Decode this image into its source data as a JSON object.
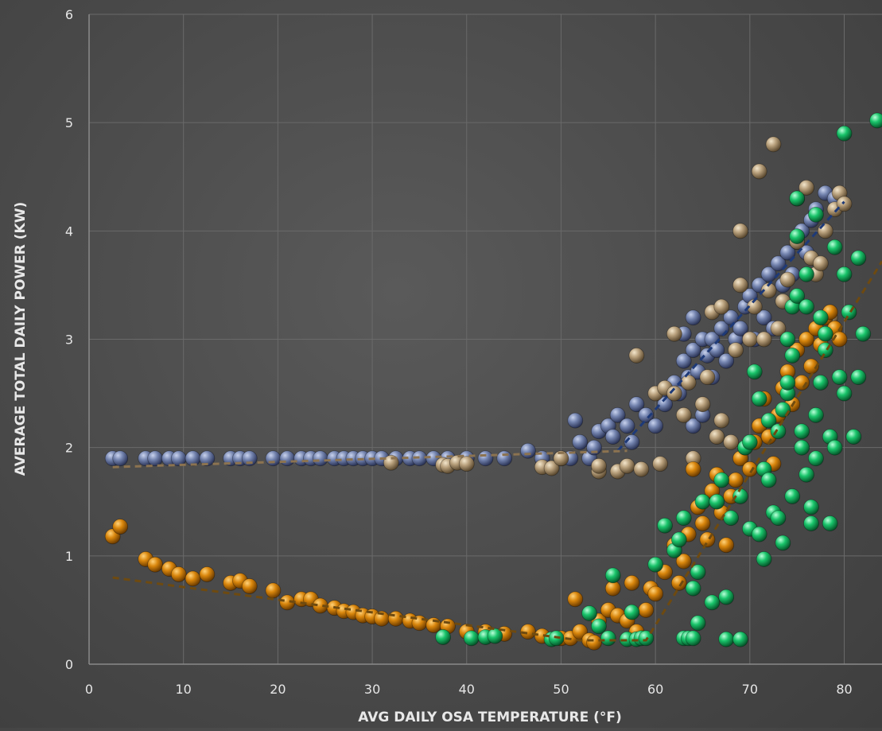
{
  "chart_data": {
    "type": "scatter",
    "title": "",
    "xlabel": "AVG DAILY OSA TEMPERATURE (°F)",
    "ylabel": "AVERAGE TOTAL DAILY POWER (KW)",
    "xlim": [
      0,
      84
    ],
    "ylim": [
      0,
      6
    ],
    "xticks": [
      "0",
      "10",
      "20",
      "30",
      "40",
      "50",
      "60",
      "70",
      "80"
    ],
    "yticks": [
      "0",
      "1",
      "2",
      "3",
      "4",
      "5",
      "6"
    ],
    "grid": true,
    "colors": {
      "blue": "#6f80ad",
      "tan": "#b9a27f",
      "orange": "#d9860c",
      "green": "#19c46a",
      "trend_blue": "#1e3a78",
      "trend_tan": "#8c7350",
      "trend_orange": "#6e4a10"
    },
    "series": [
      {
        "color_key": "blue",
        "points": [
          [
            2.5,
            1.9
          ],
          [
            3.3,
            1.9
          ],
          [
            6,
            1.9
          ],
          [
            7,
            1.9
          ],
          [
            8.5,
            1.9
          ],
          [
            9.5,
            1.9
          ],
          [
            11,
            1.9
          ],
          [
            12.5,
            1.9
          ],
          [
            15,
            1.9
          ],
          [
            16,
            1.9
          ],
          [
            17,
            1.9
          ],
          [
            19.5,
            1.9
          ],
          [
            21,
            1.9
          ],
          [
            22.5,
            1.9
          ],
          [
            23.5,
            1.9
          ],
          [
            24.5,
            1.9
          ],
          [
            26,
            1.9
          ],
          [
            27,
            1.9
          ],
          [
            28,
            1.9
          ],
          [
            29,
            1.9
          ],
          [
            30,
            1.9
          ],
          [
            31,
            1.9
          ],
          [
            32.5,
            1.9
          ],
          [
            34,
            1.9
          ],
          [
            35,
            1.9
          ],
          [
            36.5,
            1.9
          ],
          [
            38,
            1.9
          ],
          [
            40,
            1.9
          ],
          [
            42,
            1.9
          ],
          [
            44,
            1.9
          ],
          [
            46.5,
            1.97
          ],
          [
            48,
            1.9
          ],
          [
            50,
            1.9
          ],
          [
            51,
            1.9
          ],
          [
            51.5,
            2.25
          ],
          [
            52,
            2.05
          ],
          [
            53,
            1.9
          ],
          [
            53.5,
            2.0
          ],
          [
            54,
            2.15
          ],
          [
            55,
            2.2
          ],
          [
            55.5,
            2.1
          ],
          [
            56,
            2.3
          ],
          [
            57,
            2.2
          ],
          [
            57.5,
            2.05
          ],
          [
            58,
            2.4
          ],
          [
            59,
            2.3
          ],
          [
            60,
            2.2
          ],
          [
            60.5,
            2.5
          ],
          [
            61,
            2.4
          ],
          [
            62,
            2.6
          ],
          [
            62.5,
            2.5
          ],
          [
            63,
            2.8
          ],
          [
            63.5,
            2.65
          ],
          [
            64,
            2.9
          ],
          [
            64.5,
            2.7
          ],
          [
            65,
            3.0
          ],
          [
            65.5,
            2.85
          ],
          [
            66,
            3.0
          ],
          [
            66.5,
            2.9
          ],
          [
            67,
            3.1
          ],
          [
            67.5,
            2.8
          ],
          [
            68,
            3.2
          ],
          [
            68.5,
            3.0
          ],
          [
            69,
            3.1
          ],
          [
            69.5,
            3.3
          ],
          [
            70,
            3.4
          ],
          [
            70.5,
            3.0
          ],
          [
            71,
            3.5
          ],
          [
            71.5,
            3.2
          ],
          [
            72,
            3.6
          ],
          [
            72.5,
            3.1
          ],
          [
            73,
            3.7
          ],
          [
            73.5,
            3.5
          ],
          [
            74,
            3.8
          ],
          [
            74.5,
            3.6
          ],
          [
            75,
            3.9
          ],
          [
            75.5,
            4.0
          ],
          [
            76,
            3.8
          ],
          [
            76.5,
            4.1
          ],
          [
            77,
            4.2
          ],
          [
            78,
            4.35
          ],
          [
            79,
            4.3
          ],
          [
            64,
            3.2
          ],
          [
            63,
            3.05
          ],
          [
            64,
            2.2
          ],
          [
            65,
            2.3
          ],
          [
            66,
            2.65
          ]
        ]
      },
      {
        "color_key": "tan",
        "points": [
          [
            32,
            1.86
          ],
          [
            37.5,
            1.84
          ],
          [
            38,
            1.83
          ],
          [
            39,
            1.86
          ],
          [
            40,
            1.85
          ],
          [
            48,
            1.82
          ],
          [
            49,
            1.81
          ],
          [
            50,
            1.9
          ],
          [
            54,
            1.78
          ],
          [
            54,
            1.83
          ],
          [
            56,
            1.78
          ],
          [
            57,
            1.83
          ],
          [
            58.5,
            1.8
          ],
          [
            58,
            2.85
          ],
          [
            60,
            2.5
          ],
          [
            60.5,
            1.85
          ],
          [
            61,
            2.55
          ],
          [
            62,
            3.05
          ],
          [
            62,
            2.5
          ],
          [
            63,
            2.3
          ],
          [
            63.5,
            2.6
          ],
          [
            64,
            1.9
          ],
          [
            65,
            2.4
          ],
          [
            65.5,
            2.65
          ],
          [
            66,
            3.25
          ],
          [
            67,
            3.3
          ],
          [
            67,
            2.25
          ],
          [
            68,
            2.05
          ],
          [
            68.5,
            2.9
          ],
          [
            69,
            3.5
          ],
          [
            69,
            4.0
          ],
          [
            70,
            3.0
          ],
          [
            70.5,
            3.3
          ],
          [
            71,
            4.55
          ],
          [
            71.5,
            3.0
          ],
          [
            72,
            3.45
          ],
          [
            72.5,
            4.8
          ],
          [
            73,
            3.1
          ],
          [
            73.5,
            3.35
          ],
          [
            74,
            3.55
          ],
          [
            75,
            3.9
          ],
          [
            75,
            4.3
          ],
          [
            76,
            4.4
          ],
          [
            76.5,
            3.75
          ],
          [
            77,
            3.6
          ],
          [
            77.5,
            3.7
          ],
          [
            78,
            4.0
          ],
          [
            78.5,
            3.2
          ],
          [
            79,
            4.2
          ],
          [
            79.5,
            4.35
          ],
          [
            80,
            4.25
          ],
          [
            66.5,
            2.1
          ]
        ]
      },
      {
        "color_key": "orange",
        "points": [
          [
            2.5,
            1.18
          ],
          [
            3.3,
            1.27
          ],
          [
            6,
            0.97
          ],
          [
            7,
            0.92
          ],
          [
            8.5,
            0.88
          ],
          [
            9.5,
            0.83
          ],
          [
            11,
            0.79
          ],
          [
            12.5,
            0.83
          ],
          [
            15,
            0.75
          ],
          [
            16,
            0.77
          ],
          [
            17,
            0.72
          ],
          [
            19.5,
            0.68
          ],
          [
            21,
            0.57
          ],
          [
            22.5,
            0.6
          ],
          [
            23.5,
            0.6
          ],
          [
            24.5,
            0.54
          ],
          [
            26,
            0.52
          ],
          [
            27,
            0.49
          ],
          [
            28,
            0.48
          ],
          [
            29,
            0.45
          ],
          [
            30,
            0.44
          ],
          [
            31,
            0.42
          ],
          [
            32.5,
            0.42
          ],
          [
            34,
            0.4
          ],
          [
            35,
            0.38
          ],
          [
            36.5,
            0.36
          ],
          [
            38,
            0.35
          ],
          [
            40,
            0.3
          ],
          [
            42,
            0.3
          ],
          [
            44,
            0.28
          ],
          [
            46.5,
            0.3
          ],
          [
            48,
            0.26
          ],
          [
            50,
            0.24
          ],
          [
            51,
            0.24
          ],
          [
            51.5,
            0.6
          ],
          [
            52,
            0.3
          ],
          [
            53,
            0.22
          ],
          [
            53.5,
            0.2
          ],
          [
            54,
            0.4
          ],
          [
            55,
            0.5
          ],
          [
            55.5,
            0.7
          ],
          [
            56,
            0.45
          ],
          [
            57,
            0.4
          ],
          [
            57.5,
            0.75
          ],
          [
            58,
            0.3
          ],
          [
            59,
            0.5
          ],
          [
            59.5,
            0.7
          ],
          [
            60,
            0.65
          ],
          [
            61,
            0.85
          ],
          [
            62,
            1.1
          ],
          [
            62.5,
            0.75
          ],
          [
            63,
            0.95
          ],
          [
            63.5,
            1.2
          ],
          [
            64,
            1.8
          ],
          [
            64.5,
            1.45
          ],
          [
            65,
            1.3
          ],
          [
            65.5,
            1.15
          ],
          [
            66,
            1.6
          ],
          [
            66.5,
            1.75
          ],
          [
            67,
            1.4
          ],
          [
            67.5,
            1.1
          ],
          [
            68,
            1.55
          ],
          [
            68.5,
            1.7
          ],
          [
            69,
            1.9
          ],
          [
            69.5,
            2.0
          ],
          [
            70,
            1.8
          ],
          [
            70.5,
            2.05
          ],
          [
            71,
            2.2
          ],
          [
            71.5,
            2.45
          ],
          [
            72,
            2.1
          ],
          [
            72.5,
            1.85
          ],
          [
            73,
            2.3
          ],
          [
            73.5,
            2.55
          ],
          [
            74,
            2.7
          ],
          [
            74.5,
            2.4
          ],
          [
            75,
            2.9
          ],
          [
            75.5,
            2.6
          ],
          [
            76,
            3.0
          ],
          [
            76.5,
            2.75
          ],
          [
            77,
            3.1
          ],
          [
            77.5,
            2.95
          ],
          [
            78,
            3.2
          ],
          [
            78.5,
            3.25
          ],
          [
            79,
            3.1
          ],
          [
            79.5,
            3.0
          ]
        ]
      },
      {
        "color_key": "green",
        "points": [
          [
            37.5,
            0.25
          ],
          [
            40.5,
            0.24
          ],
          [
            42,
            0.25
          ],
          [
            43,
            0.26
          ],
          [
            49,
            0.23
          ],
          [
            49.5,
            0.24
          ],
          [
            53,
            0.47
          ],
          [
            54,
            0.35
          ],
          [
            55,
            0.24
          ],
          [
            55.5,
            0.82
          ],
          [
            57,
            0.23
          ],
          [
            57.5,
            0.48
          ],
          [
            58,
            0.23
          ],
          [
            58.5,
            0.24
          ],
          [
            59,
            0.24
          ],
          [
            60,
            0.92
          ],
          [
            61,
            1.28
          ],
          [
            62,
            1.05
          ],
          [
            62.5,
            1.15
          ],
          [
            63,
            1.35
          ],
          [
            63,
            0.24
          ],
          [
            63.5,
            0.24
          ],
          [
            64,
            0.24
          ],
          [
            64,
            0.7
          ],
          [
            64.5,
            0.85
          ],
          [
            64.5,
            0.38
          ],
          [
            65,
            1.5
          ],
          [
            66,
            0.57
          ],
          [
            66.5,
            1.5
          ],
          [
            67,
            1.7
          ],
          [
            67.5,
            0.62
          ],
          [
            67.5,
            0.23
          ],
          [
            68,
            1.35
          ],
          [
            69,
            0.23
          ],
          [
            69,
            1.55
          ],
          [
            69.5,
            2.0
          ],
          [
            70,
            2.05
          ],
          [
            70,
            1.25
          ],
          [
            70.5,
            2.7
          ],
          [
            71,
            2.45
          ],
          [
            71,
            1.2
          ],
          [
            71.5,
            1.8
          ],
          [
            71.5,
            0.97
          ],
          [
            72,
            1.7
          ],
          [
            72,
            2.25
          ],
          [
            72.5,
            1.4
          ],
          [
            73,
            2.15
          ],
          [
            73,
            1.35
          ],
          [
            73.5,
            2.35
          ],
          [
            73.5,
            1.12
          ],
          [
            74,
            2.5
          ],
          [
            74,
            2.6
          ],
          [
            74,
            3.0
          ],
          [
            74.5,
            3.3
          ],
          [
            74.5,
            1.55
          ],
          [
            75,
            3.4
          ],
          [
            75,
            4.3
          ],
          [
            75.5,
            2.0
          ],
          [
            75.5,
            2.15
          ],
          [
            76,
            3.6
          ],
          [
            76,
            1.75
          ],
          [
            76.5,
            1.45
          ],
          [
            76.5,
            1.3
          ],
          [
            77,
            1.9
          ],
          [
            77,
            2.3
          ],
          [
            77.5,
            2.6
          ],
          [
            77.5,
            3.2
          ],
          [
            78,
            2.9
          ],
          [
            78,
            3.05
          ],
          [
            78.5,
            2.1
          ],
          [
            78.5,
            1.3
          ],
          [
            79,
            2.0
          ],
          [
            79,
            3.85
          ],
          [
            79.5,
            2.65
          ],
          [
            80,
            3.6
          ],
          [
            80,
            2.5
          ],
          [
            80.5,
            3.25
          ],
          [
            81,
            2.1
          ],
          [
            81.5,
            3.75
          ],
          [
            81.5,
            2.65
          ],
          [
            82,
            3.05
          ],
          [
            80,
            4.9
          ],
          [
            83.5,
            5.02
          ],
          [
            77,
            4.15
          ],
          [
            75,
            3.95
          ],
          [
            76,
            3.3
          ],
          [
            74.5,
            2.85
          ]
        ]
      }
    ],
    "trendlines": [
      {
        "color_key": "trend_blue",
        "points": [
          [
            56,
            1.97
          ],
          [
            80,
            4.27
          ]
        ]
      },
      {
        "color_key": "trend_tan",
        "points": [
          [
            2.5,
            1.82
          ],
          [
            57,
            1.97
          ]
        ]
      },
      {
        "color_key": "trend_orange",
        "points": [
          [
            2.5,
            0.8
          ],
          [
            52,
            0.22
          ],
          [
            59,
            0.22
          ],
          [
            84,
            3.72
          ]
        ]
      }
    ]
  }
}
